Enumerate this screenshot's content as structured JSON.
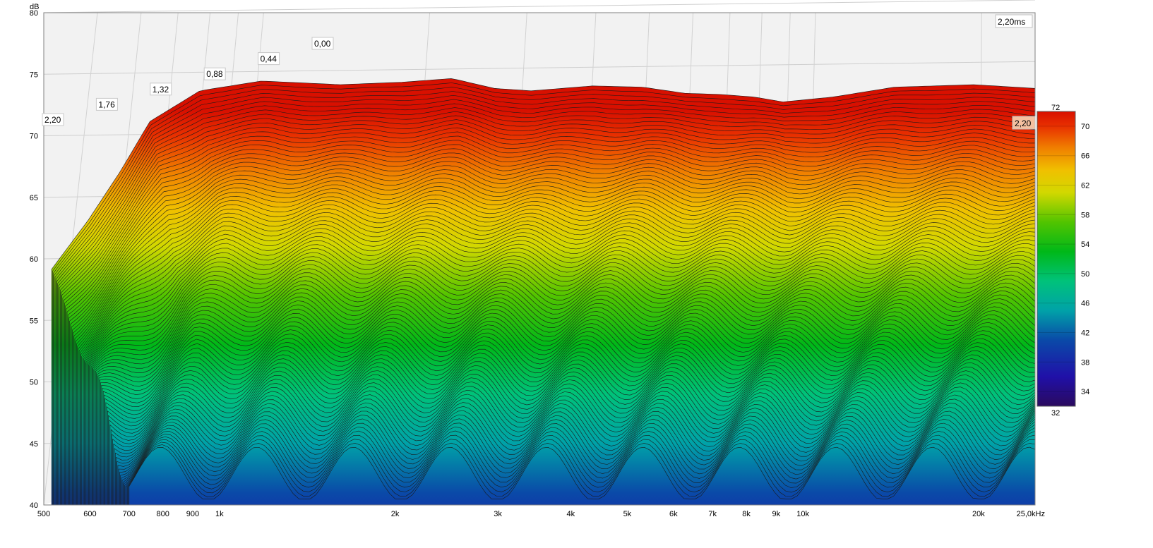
{
  "chart_data": {
    "type": "waterfall",
    "title": "",
    "units": {
      "y": "dB",
      "x": "kHz"
    },
    "x_axis": {
      "scale": "log",
      "range": [
        500,
        25000
      ],
      "ticks": [
        {
          "value": 500,
          "label": "500"
        },
        {
          "value": 600,
          "label": "600"
        },
        {
          "value": 700,
          "label": "700"
        },
        {
          "value": 800,
          "label": "800"
        },
        {
          "value": 900,
          "label": "900"
        },
        {
          "value": 1000,
          "label": "1k"
        },
        {
          "value": 2000,
          "label": "2k"
        },
        {
          "value": 3000,
          "label": "3k"
        },
        {
          "value": 4000,
          "label": "4k"
        },
        {
          "value": 5000,
          "label": "5k"
        },
        {
          "value": 6000,
          "label": "6k"
        },
        {
          "value": 7000,
          "label": "7k"
        },
        {
          "value": 8000,
          "label": "8k"
        },
        {
          "value": 9000,
          "label": "9k"
        },
        {
          "value": 10000,
          "label": "10k"
        },
        {
          "value": 20000,
          "label": "20k"
        },
        {
          "value": 25000,
          "label": "25,0kHz"
        }
      ]
    },
    "y_axis": {
      "label": "dB",
      "range": [
        40,
        80
      ],
      "ticks": [
        {
          "value": 40,
          "label": "40"
        },
        {
          "value": 45,
          "label": "45"
        },
        {
          "value": 50,
          "label": "50"
        },
        {
          "value": 55,
          "label": "55"
        },
        {
          "value": 60,
          "label": "60"
        },
        {
          "value": 65,
          "label": "65"
        },
        {
          "value": 70,
          "label": "70"
        },
        {
          "value": 75,
          "label": "75"
        },
        {
          "value": 80,
          "label": "80"
        }
      ]
    },
    "time_axis": {
      "units": "ms",
      "range": [
        0,
        2.2
      ],
      "ticks": [
        {
          "value": 0.0,
          "label": "0,00"
        },
        {
          "value": 0.44,
          "label": "0,44"
        },
        {
          "value": 0.88,
          "label": "0,88"
        },
        {
          "value": 1.32,
          "label": "1,32"
        },
        {
          "value": 1.76,
          "label": "1,76"
        },
        {
          "value": 2.2,
          "label": "2,20"
        }
      ],
      "right_label": "2,20",
      "corner_label": "2,20ms"
    },
    "color_scale": {
      "min": 32,
      "max": 72,
      "min_label": "32",
      "max_label": "72",
      "ticks": [
        {
          "value": 70,
          "label": "70"
        },
        {
          "value": 66,
          "label": "66"
        },
        {
          "value": 62,
          "label": "62"
        },
        {
          "value": 58,
          "label": "58"
        },
        {
          "value": 54,
          "label": "54"
        },
        {
          "value": 50,
          "label": "50"
        },
        {
          "value": 46,
          "label": "46"
        },
        {
          "value": 42,
          "label": "42"
        },
        {
          "value": 38,
          "label": "38"
        },
        {
          "value": 34,
          "label": "34"
        }
      ],
      "stops": [
        {
          "value": 32,
          "color": "#2a0a5e"
        },
        {
          "value": 36,
          "color": "#2010a8"
        },
        {
          "value": 41,
          "color": "#0a4aa8"
        },
        {
          "value": 45,
          "color": "#00a2a8"
        },
        {
          "value": 49,
          "color": "#00c27a"
        },
        {
          "value": 53,
          "color": "#00b818"
        },
        {
          "value": 57,
          "color": "#52c400"
        },
        {
          "value": 61,
          "color": "#d2d800"
        },
        {
          "value": 64,
          "color": "#f0c000"
        },
        {
          "value": 67,
          "color": "#f08000"
        },
        {
          "value": 70,
          "color": "#e83000"
        },
        {
          "value": 72,
          "color": "#d81000"
        }
      ]
    },
    "series": {
      "time_slices_ms": [
        0.0,
        0.11,
        0.22,
        0.33,
        0.44,
        0.55,
        0.66,
        0.77,
        0.88,
        0.99,
        1.1,
        1.21,
        1.32,
        1.43,
        1.54,
        1.65,
        1.76,
        1.87,
        1.98,
        2.09,
        2.2
      ],
      "front_slice_response": {
        "time_ms": 0.0,
        "freq_hz": [
          700,
          800,
          900,
          1000,
          1200,
          1500,
          2000,
          2500,
          3000,
          3500,
          4000,
          5000,
          6000,
          7000,
          8000,
          9000,
          10000,
          12000,
          15000,
          20000,
          25000
        ],
        "db": [
          56,
          60,
          64,
          68,
          70.5,
          71.3,
          71,
          71.2,
          71.5,
          70.7,
          70.5,
          70.9,
          70.8,
          70.3,
          70.2,
          70,
          69.6,
          70,
          70.8,
          71,
          70.7
        ]
      },
      "back_slice_floor_db": 42.5
    },
    "grid": true,
    "legend": "right"
  }
}
